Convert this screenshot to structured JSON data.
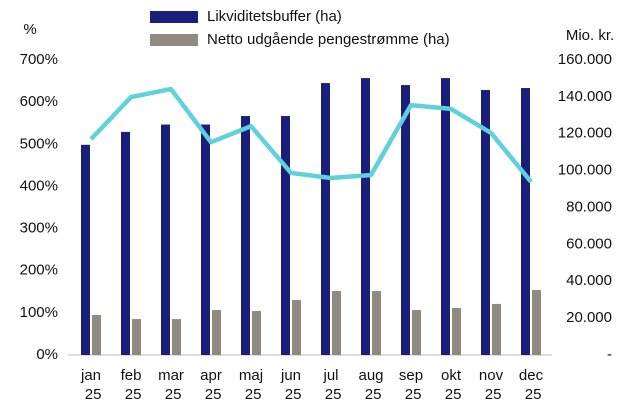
{
  "chart_data": {
    "type": "bar",
    "y_label": "%",
    "y2_label": "Mio. kr.",
    "categories": [
      "jan 25",
      "feb 25",
      "mar 25",
      "apr 25",
      "maj 25",
      "jun 25",
      "jul 25",
      "aug 25",
      "sep 25",
      "okt 25",
      "nov 25",
      "dec 25"
    ],
    "series": [
      {
        "name": "Likviditetsbuffer (ha)",
        "color": "#1a1f7a",
        "type": "bar",
        "axis": "y2",
        "values": [
          114000,
          121000,
          125000,
          125000,
          129600,
          129600,
          147500,
          150200,
          146400,
          150200,
          143700,
          144800
        ]
      },
      {
        "name": "Netto udgående pengestrømme (ha)",
        "color": "#8f8a82",
        "type": "bar",
        "axis": "y2",
        "values": [
          21700,
          19500,
          19500,
          24400,
          23900,
          29800,
          34700,
          34700,
          24400,
          25500,
          27700,
          35300
        ]
      },
      {
        "color": "#5fd0dc",
        "type": "line",
        "values": [
          512,
          612,
          631,
          505,
          543,
          432,
          420,
          427,
          593,
          584,
          527,
          411
        ]
      }
    ],
    "ylim": [
      0,
      700
    ],
    "yticks": [
      {
        "value": 0,
        "label": "0%"
      },
      {
        "value": 100,
        "label": "100%"
      },
      {
        "value": 200,
        "label": "200%"
      },
      {
        "value": 300,
        "label": "300%"
      },
      {
        "value": 400,
        "label": "400%"
      },
      {
        "value": 500,
        "label": "500%"
      },
      {
        "value": 600,
        "label": "600%"
      },
      {
        "value": 700,
        "label": "700%"
      }
    ],
    "y2lim": [
      0,
      160000
    ],
    "y2ticks": [
      {
        "value": 0,
        "label": "-"
      },
      {
        "value": 20000,
        "label": "20.000"
      },
      {
        "value": 40000,
        "label": "40.000"
      },
      {
        "value": 60000,
        "label": "60.000"
      },
      {
        "value": 80000,
        "label": "80.000"
      },
      {
        "value": 100000,
        "label": "100.000"
      },
      {
        "value": 120000,
        "label": "120.000"
      },
      {
        "value": 140000,
        "label": "140.000"
      },
      {
        "value": 160000,
        "label": "160.000"
      }
    ],
    "grid": false
  }
}
